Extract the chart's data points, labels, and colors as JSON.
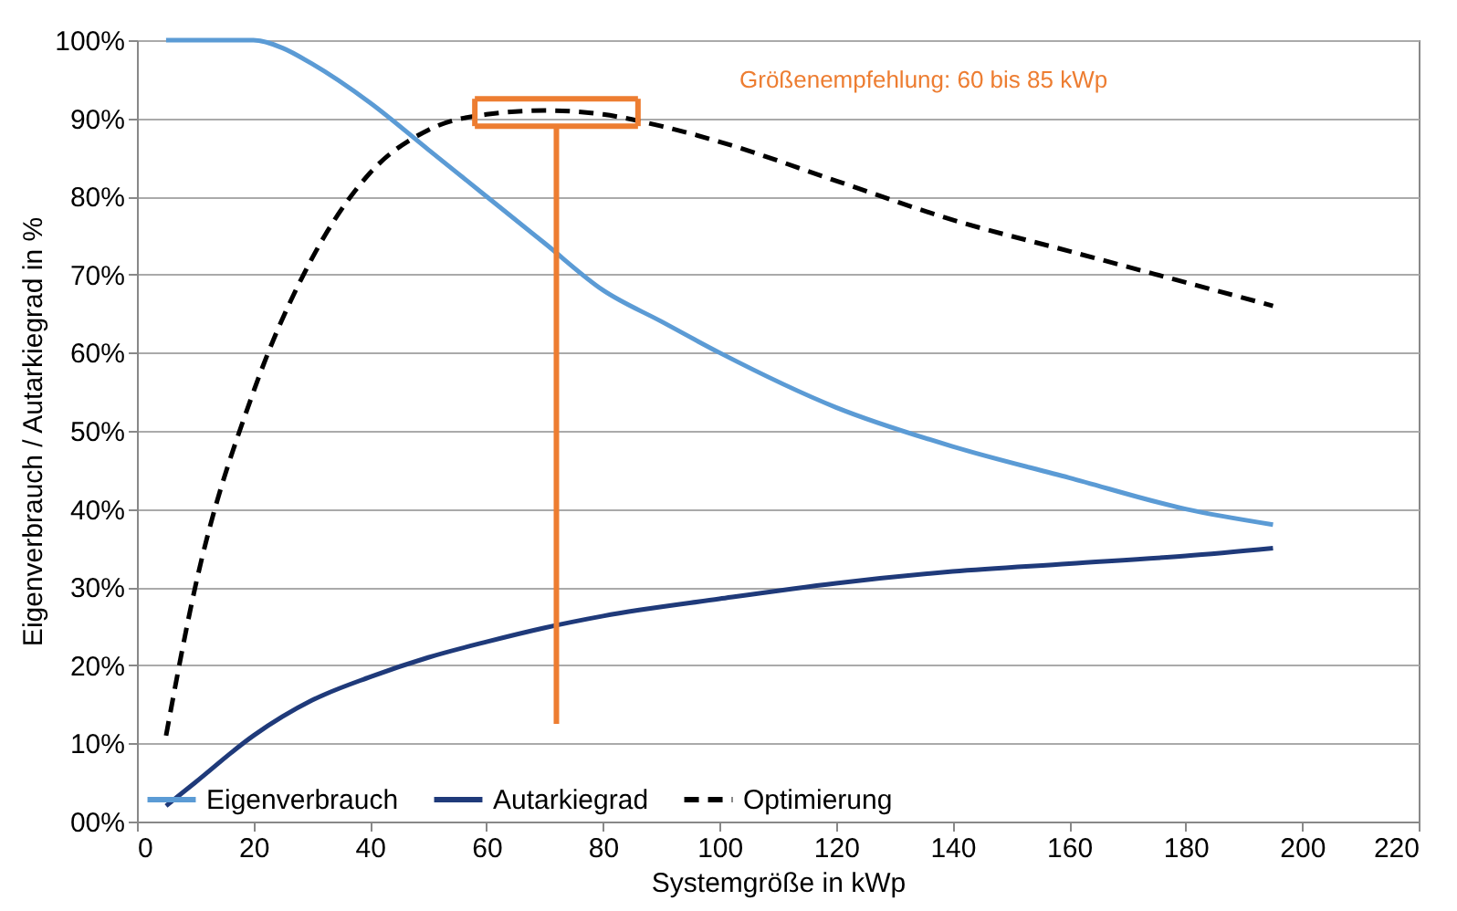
{
  "chart_data": {
    "type": "line",
    "xlabel": "Systemgröße in kWp",
    "ylabel": "Eigenverbrauch / Autarkiegrad in %",
    "xlim": [
      0,
      220
    ],
    "xticks": [
      0,
      20,
      40,
      60,
      80,
      100,
      120,
      140,
      160,
      180,
      200,
      220
    ],
    "ylim": [
      0,
      100
    ],
    "yticks": [
      {
        "value": 0,
        "label": "00%"
      },
      {
        "value": 10,
        "label": "10%"
      },
      {
        "value": 20,
        "label": "20%"
      },
      {
        "value": 30,
        "label": "30%"
      },
      {
        "value": 40,
        "label": "40%"
      },
      {
        "value": 50,
        "label": "50%"
      },
      {
        "value": 60,
        "label": "60%"
      },
      {
        "value": 70,
        "label": "70%"
      },
      {
        "value": 80,
        "label": "80%"
      },
      {
        "value": 90,
        "label": "90%"
      },
      {
        "value": 100,
        "label": "100%"
      }
    ],
    "grid": "y",
    "legend": "bottom",
    "marker": "none",
    "series": [
      {
        "name": "Eigenverbrauch",
        "color": "#5b9bd5",
        "line_style": "solid",
        "x": [
          5,
          10,
          20,
          25,
          30,
          40,
          50,
          60,
          70,
          80,
          90,
          100,
          120,
          140,
          160,
          180,
          195
        ],
        "values": [
          100,
          100,
          100,
          99,
          97,
          92,
          86,
          80,
          74,
          68,
          64,
          60,
          53,
          48,
          44,
          40,
          38
        ]
      },
      {
        "name": "Autarkiegrad",
        "color": "#1f3a7a",
        "line_style": "solid",
        "x": [
          5,
          10,
          20,
          30,
          40,
          50,
          60,
          70,
          80,
          100,
          120,
          140,
          160,
          180,
          195
        ],
        "values": [
          2,
          5,
          11,
          15.5,
          18.5,
          21,
          23,
          24.8,
          26.3,
          28.5,
          30.5,
          32,
          33,
          34,
          35
        ]
      },
      {
        "name": "Optimierung",
        "color": "#000000",
        "line_style": "dashed",
        "x": [
          5,
          10,
          20,
          30,
          40,
          50,
          60,
          70,
          80,
          90,
          100,
          120,
          140,
          160,
          180,
          195
        ],
        "values": [
          11,
          30,
          55,
          72,
          83,
          88.5,
          90.5,
          91,
          90.5,
          89,
          87,
          82,
          77,
          73,
          69,
          66
        ]
      },
      {
        "color": "#ed7d31",
        "line_style": "solid",
        "x": [
          72,
          72
        ],
        "values": [
          12.5,
          89
        ]
      },
      {
        "color": "#ed7d31",
        "line_style": "solid",
        "x": [
          58,
          86
        ],
        "values": [
          89,
          89
        ]
      },
      {
        "color": "#ed7d31",
        "line_style": "solid",
        "x": [
          58,
          86
        ],
        "values": [
          92.5,
          92.5
        ]
      },
      {
        "color": "#ed7d31",
        "line_style": "solid",
        "x": [
          58,
          58
        ],
        "values": [
          89,
          92.5
        ]
      },
      {
        "color": "#ed7d31",
        "line_style": "solid",
        "x": [
          86,
          86
        ],
        "values": [
          89,
          92.5
        ]
      }
    ],
    "annotations": [
      "Größenempfehlung: 60 bis 85 kWp"
    ]
  }
}
